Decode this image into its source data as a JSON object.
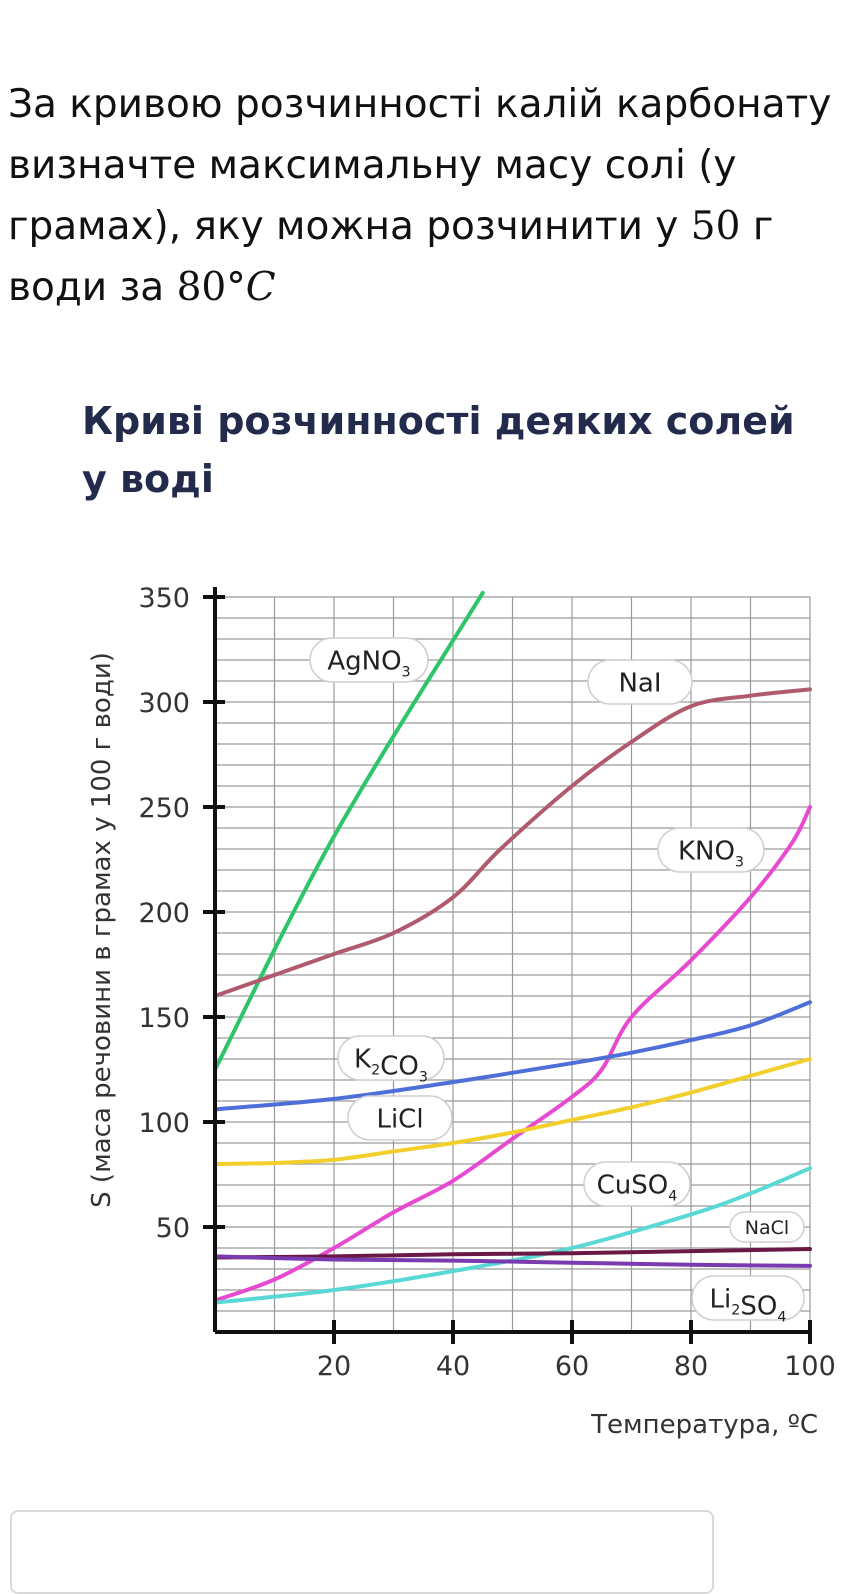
{
  "question": {
    "text_a": "За кривою розчинності калій карбонату визначте максимальну масу солі (у грамах), яку можна розчинити у ",
    "mass": "50",
    "text_b": " г води за ",
    "temp": "80°",
    "temp_unit": "C"
  },
  "chart_data": {
    "type": "line",
    "title": "Криві розчинності деяких солей у воді",
    "xlabel": "Температура, ºC",
    "ylabel": "S (маса речовини в грамах у 100 г води)",
    "xlim": [
      0,
      100
    ],
    "ylim": [
      0,
      350
    ],
    "x_ticks": [
      20,
      40,
      60,
      80,
      100
    ],
    "y_ticks": [
      50,
      100,
      150,
      200,
      250,
      300,
      350
    ],
    "grid": true,
    "series": [
      {
        "name": "AgNO3",
        "label_main": "AgNO",
        "label_sub": "3",
        "label_post": "",
        "label_sub2": "",
        "color": "#2ec46a",
        "points": [
          [
            0,
            125
          ],
          [
            20,
            236
          ],
          [
            45,
            352
          ]
        ]
      },
      {
        "name": "NaI",
        "label_main": "NaI",
        "label_sub": "",
        "label_post": "",
        "label_sub2": "",
        "color": "#b05a6e",
        "points": [
          [
            0,
            160
          ],
          [
            10,
            170
          ],
          [
            20,
            180
          ],
          [
            30,
            190
          ],
          [
            40,
            207
          ],
          [
            48,
            230
          ],
          [
            60,
            260
          ],
          [
            70,
            281
          ],
          [
            80,
            298
          ],
          [
            90,
            303
          ],
          [
            100,
            306
          ]
        ]
      },
      {
        "name": "KNO3",
        "label_main": "KNO",
        "label_sub": "3",
        "label_post": "",
        "label_sub2": "",
        "color": "#e74ad0",
        "points": [
          [
            0,
            15
          ],
          [
            10,
            25
          ],
          [
            20,
            40
          ],
          [
            30,
            57
          ],
          [
            40,
            72
          ],
          [
            50,
            92
          ],
          [
            60,
            112
          ],
          [
            65,
            125
          ],
          [
            70,
            150
          ],
          [
            80,
            177
          ],
          [
            90,
            207
          ],
          [
            97,
            233
          ],
          [
            100,
            250
          ]
        ]
      },
      {
        "name": "K2CO3",
        "label_main": "K",
        "label_sub": "2",
        "label_post": "CO",
        "label_sub2": "3",
        "color": "#4f6fd8",
        "points": [
          [
            0,
            106
          ],
          [
            20,
            111
          ],
          [
            40,
            119
          ],
          [
            60,
            128
          ],
          [
            70,
            133
          ],
          [
            80,
            139
          ],
          [
            90,
            146
          ],
          [
            100,
            157
          ]
        ]
      },
      {
        "name": "LiCl",
        "label_main": "LiCl",
        "label_sub": "",
        "label_post": "",
        "label_sub2": "",
        "color": "#f3cf2c",
        "points": [
          [
            0,
            80
          ],
          [
            10,
            80.5
          ],
          [
            20,
            82
          ],
          [
            30,
            86
          ],
          [
            40,
            90
          ],
          [
            50,
            95
          ],
          [
            60,
            101
          ],
          [
            70,
            107
          ],
          [
            80,
            114
          ],
          [
            90,
            122
          ],
          [
            100,
            130
          ]
        ]
      },
      {
        "name": "CuSO4",
        "label_main": "CuSO",
        "label_sub": "4",
        "label_post": "",
        "label_sub2": "",
        "color": "#5ad8d6",
        "points": [
          [
            0,
            14
          ],
          [
            20,
            20
          ],
          [
            40,
            29
          ],
          [
            60,
            40
          ],
          [
            80,
            56
          ],
          [
            90,
            66
          ],
          [
            100,
            78
          ]
        ]
      },
      {
        "name": "NaCl",
        "label_main": "NaCl",
        "label_sub": "",
        "label_post": "",
        "label_sub2": "",
        "color": "#6a1945",
        "points": [
          [
            0,
            35.5
          ],
          [
            20,
            36
          ],
          [
            40,
            37
          ],
          [
            60,
            37.5
          ],
          [
            80,
            38.5
          ],
          [
            100,
            39.5
          ]
        ]
      },
      {
        "name": "Li2SO4",
        "label_main": "Li",
        "label_sub": "2",
        "label_post": "SO",
        "label_sub2": "4",
        "color": "#7a3bb0",
        "points": [
          [
            0,
            36
          ],
          [
            20,
            34.5
          ],
          [
            40,
            34
          ],
          [
            60,
            33
          ],
          [
            80,
            32
          ],
          [
            100,
            31.5
          ]
        ]
      }
    ]
  }
}
